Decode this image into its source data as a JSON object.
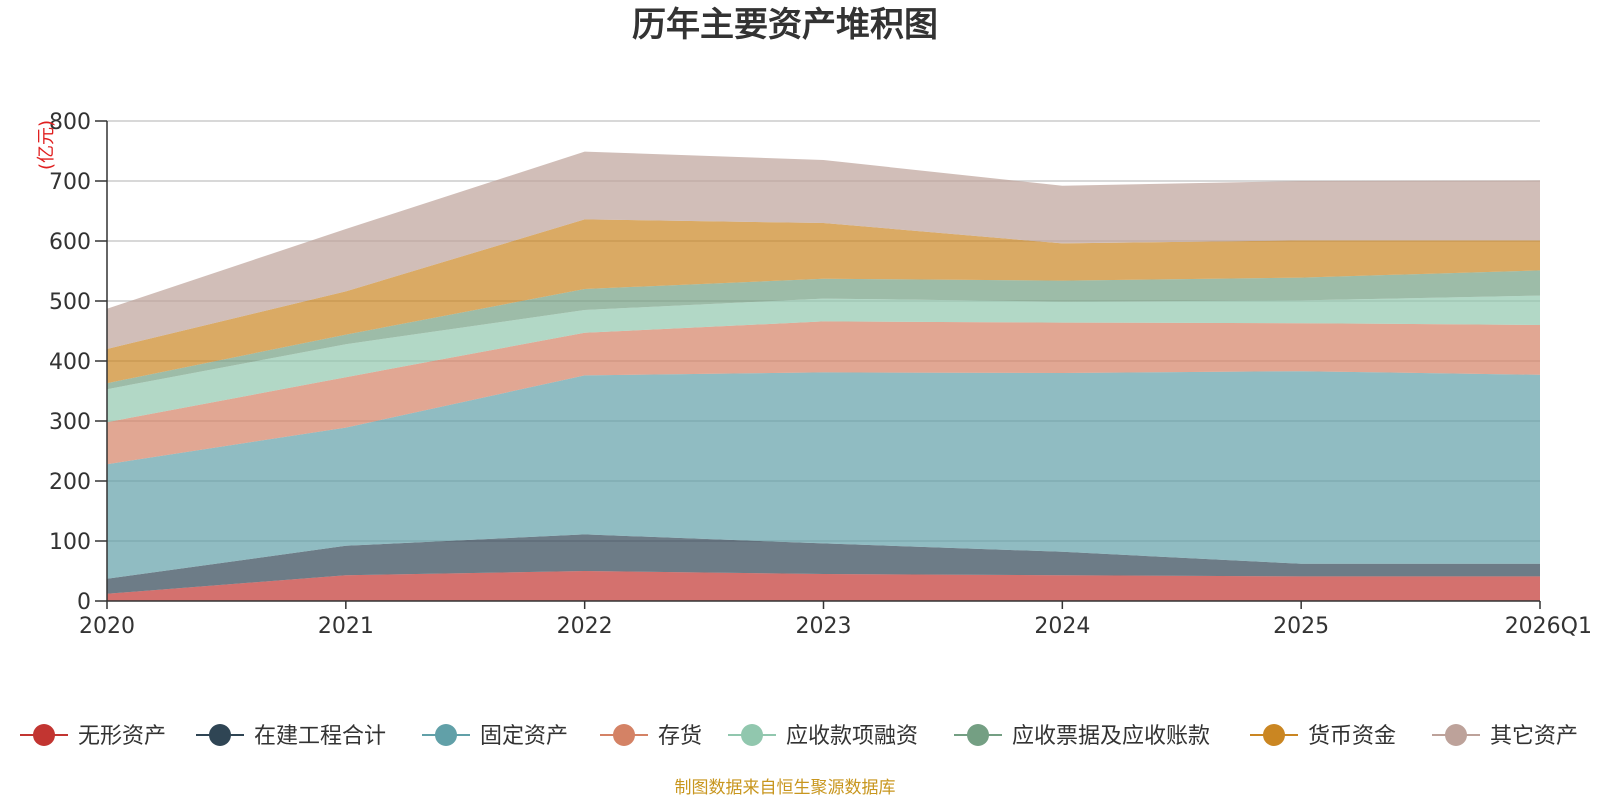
{
  "chart_data": {
    "type": "area",
    "stacked": true,
    "title": "历年主要资产堆积图",
    "ylabel": "(亿元)",
    "xlabel": "",
    "ylim": [
      0,
      800
    ],
    "yticks": [
      0,
      100,
      200,
      300,
      400,
      500,
      600,
      700,
      800
    ],
    "categories": [
      "2020",
      "2021",
      "2022",
      "2023",
      "2024",
      "2025",
      "2026Q1"
    ],
    "series": [
      {
        "name": "无形资产",
        "color": "#c23531",
        "values": [
          12,
          43,
          50,
          45,
          43,
          41,
          41
        ]
      },
      {
        "name": "在建工程合计",
        "color": "#2f4554",
        "values": [
          25,
          49,
          61,
          51,
          39,
          21,
          21
        ]
      },
      {
        "name": "固定资产",
        "color": "#61a0a8",
        "values": [
          191,
          197,
          265,
          285,
          298,
          321,
          315
        ]
      },
      {
        "name": "存货",
        "color": "#d48265",
        "values": [
          70,
          84,
          71,
          85,
          84,
          80,
          83
        ]
      },
      {
        "name": "应收款项融资",
        "color": "#91c7ae",
        "values": [
          55,
          55,
          38,
          38,
          35,
          38,
          49
        ]
      },
      {
        "name": "应收票据及应收账款",
        "color": "#749f83",
        "values": [
          10,
          16,
          35,
          33,
          35,
          38,
          42
        ]
      },
      {
        "name": "货币资金",
        "color": "#ca8622",
        "values": [
          57,
          72,
          116,
          93,
          62,
          62,
          50
        ]
      },
      {
        "name": "其它资产",
        "color": "#bda29a",
        "values": [
          67,
          104,
          113,
          105,
          96,
          99,
          100
        ]
      }
    ],
    "legend_position": "bottom",
    "grid": true
  },
  "footer": {
    "source": "制图数据来自恒生聚源数据库"
  }
}
